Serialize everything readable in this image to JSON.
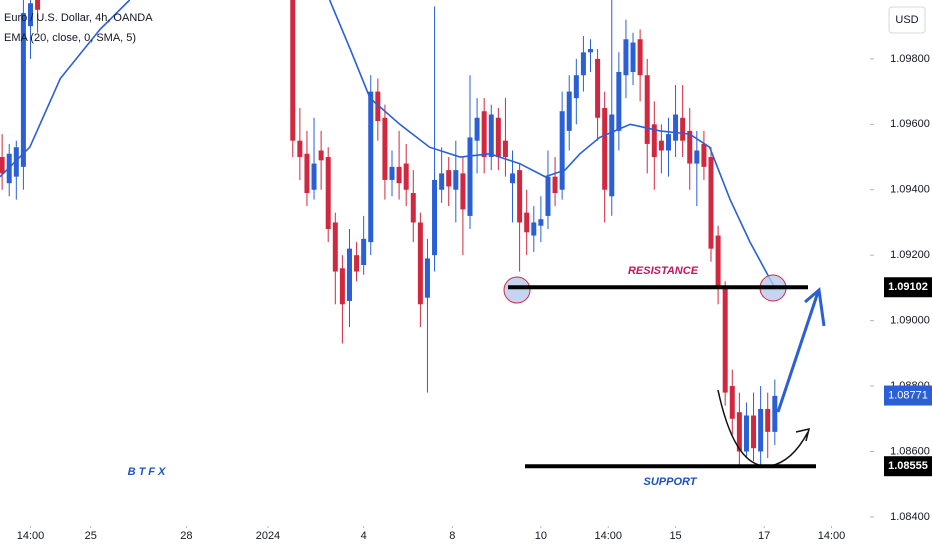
{
  "chart_data": {
    "type": "candlestick",
    "title": "Euro / U.S. Dollar, 4h, OANDA",
    "subtitle": "EMA (20, close, 0, SMA, 5)",
    "currency": "USD",
    "logo": "BTFX",
    "up_color": "#2a5fd6",
    "down_color": "#d1283f",
    "x": [
      0,
      1,
      2,
      3,
      4,
      5,
      41,
      42,
      43,
      44,
      45,
      46,
      47,
      48,
      49,
      50,
      51,
      52,
      53,
      54,
      55,
      56,
      57,
      58,
      59,
      60,
      61,
      62,
      63,
      64,
      65,
      66,
      67,
      68,
      69,
      70,
      71,
      72,
      73,
      74,
      75,
      76,
      77,
      78,
      79,
      80,
      81,
      82,
      83,
      84,
      85,
      86,
      87,
      88,
      89,
      90,
      91,
      92,
      93,
      94,
      95,
      96,
      97,
      98,
      99,
      100,
      101,
      102,
      103,
      104,
      105,
      106,
      107,
      108,
      109
    ],
    "open": [
      1.095,
      1.0942,
      1.0944,
      1.0947,
      1.099,
      1.0998,
      1.0998,
      1.0955,
      1.0951,
      1.094,
      1.0952,
      1.095,
      1.093,
      1.0916,
      1.0906,
      1.092,
      1.0917,
      1.0924,
      1.097,
      1.0962,
      1.0943,
      1.0947,
      1.0948,
      1.0939,
      1.093,
      1.0907,
      1.092,
      1.094,
      1.0946,
      1.094,
      1.0945,
      1.0932,
      1.0955,
      1.0964,
      1.095,
      1.0962,
      1.0955,
      1.0942,
      1.0946,
      1.0933,
      1.0926,
      1.0929,
      1.0932,
      1.0944,
      1.094,
      1.0958,
      1.0968,
      1.0975,
      1.0982,
      1.098,
      1.0965,
      1.0938,
      1.0958,
      1.0975,
      1.0976,
      1.0986,
      1.0975,
      1.096,
      1.0955,
      1.0952,
      1.0955,
      1.0962,
      1.0958,
      1.0948,
      1.0954,
      1.095,
      1.0926,
      1.091,
      1.088,
      1.0872,
      1.086,
      1.0871,
      1.086,
      1.0873,
      1.0866
    ],
    "high": [
      1.0957,
      1.0954,
      1.0955,
      1.0998,
      1.0998,
      1.0998,
      1.0998,
      1.0965,
      1.0958,
      1.0962,
      1.0958,
      1.0953,
      1.0933,
      1.092,
      1.0928,
      1.0924,
      1.0932,
      1.0975,
      1.0974,
      1.0966,
      1.0952,
      1.0958,
      1.0954,
      1.0946,
      1.0933,
      1.0925,
      1.0996,
      1.0953,
      1.095,
      1.0955,
      1.095,
      1.0975,
      1.0968,
      1.0968,
      1.0966,
      1.0965,
      1.0968,
      1.0952,
      1.0948,
      1.094,
      1.0935,
      1.0938,
      1.0952,
      1.095,
      1.097,
      1.0975,
      1.098,
      1.0987,
      1.0986,
      1.0983,
      1.097,
      1.0998,
      1.0982,
      1.0992,
      1.0988,
      1.0989,
      1.098,
      1.0967,
      1.096,
      1.0962,
      1.0972,
      1.0972,
      1.0965,
      1.0958,
      1.0958,
      1.0953,
      1.0929,
      1.0912,
      1.0885,
      1.0878,
      1.0875,
      1.0878,
      1.088,
      1.0878,
      1.0882
    ],
    "low": [
      1.094,
      1.0938,
      1.0937,
      1.094,
      1.098,
      1.0988,
      1.095,
      1.0943,
      1.0935,
      1.0937,
      1.094,
      1.0924,
      1.0905,
      1.0893,
      1.0898,
      1.0912,
      1.0914,
      1.092,
      1.0955,
      1.0937,
      1.0938,
      1.0937,
      1.0935,
      1.0924,
      1.0898,
      1.0878,
      1.0915,
      1.0936,
      1.0935,
      1.093,
      1.092,
      1.0928,
      1.0945,
      1.0945,
      1.0946,
      1.0946,
      1.0944,
      1.093,
      1.0915,
      1.092,
      1.0921,
      1.0924,
      1.0928,
      1.0935,
      1.0937,
      1.0952,
      1.096,
      1.097,
      1.0976,
      1.0955,
      1.093,
      1.0932,
      1.0952,
      1.0968,
      1.0972,
      1.0967,
      1.0945,
      1.094,
      1.0945,
      1.0944,
      1.095,
      1.095,
      1.094,
      1.0935,
      1.0943,
      1.0918,
      1.0905,
      1.0874,
      1.0865,
      1.0855,
      1.0858,
      1.0857,
      1.0856,
      1.0858,
      1.0862
    ],
    "close": [
      1.0945,
      1.0951,
      1.0953,
      1.0994,
      1.0997,
      1.0995,
      1.0955,
      1.095,
      1.0939,
      1.0948,
      1.0949,
      1.0928,
      1.0915,
      1.0905,
      1.0922,
      1.0915,
      1.0925,
      1.097,
      1.0961,
      1.0943,
      1.0947,
      1.0942,
      1.094,
      1.093,
      1.0905,
      1.0919,
      1.0943,
      1.0945,
      1.0941,
      1.0946,
      1.0934,
      1.0956,
      1.0962,
      1.095,
      1.0963,
      1.095,
      1.095,
      1.0945,
      1.093,
      1.0927,
      1.093,
      1.0931,
      1.0944,
      1.0939,
      1.0964,
      1.097,
      1.0975,
      1.0982,
      1.0983,
      1.0962,
      1.094,
      1.0963,
      1.0976,
      1.0986,
      1.0985,
      1.0975,
      1.0954,
      1.095,
      1.0952,
      1.0957,
      1.0963,
      1.0955,
      1.0948,
      1.0952,
      1.0947,
      1.0922,
      1.091,
      1.0878,
      1.087,
      1.086,
      1.0871,
      1.0861,
      1.0873,
      1.0866,
      1.0877
    ],
    "ema": {
      "color": "#2a5fd6",
      "x": [
        -0.3,
        3.9,
        8.2,
        13.8,
        18.0,
        30,
        46.2,
        49.1,
        51.9,
        56.1,
        60.3,
        64.6,
        68.8,
        73.0,
        76.6,
        79.4,
        81.5,
        84.3,
        88.6,
        92.8,
        97.0,
        99.8,
        102.7,
        105.5,
        109.0
      ],
      "values": [
        1.0944,
        1.0953,
        1.0974,
        1.0989,
        1.0998,
        null,
        1.0998,
        1.0983,
        1.0968,
        1.096,
        1.0953,
        1.095,
        1.0951,
        1.0948,
        1.0944,
        1.0946,
        1.0951,
        1.0956,
        1.096,
        1.0958,
        1.0957,
        1.0953,
        1.0937,
        1.0924,
        1.091
      ]
    },
    "xlim": [
      -0.3,
      121.3
    ],
    "ylim": [
      1.0836,
      1.0998
    ],
    "xticks": [
      {
        "value": 4,
        "label": "14:00"
      },
      {
        "value": 12.5,
        "label": "25"
      },
      {
        "value": 26,
        "label": "28"
      },
      {
        "value": 37.5,
        "label": "2024"
      },
      {
        "value": 51,
        "label": "4"
      },
      {
        "value": 63.5,
        "label": "8"
      },
      {
        "value": 76,
        "label": "10"
      },
      {
        "value": 85.5,
        "label": "14:00"
      },
      {
        "value": 95,
        "label": "15"
      },
      {
        "value": 107.5,
        "label": "17"
      },
      {
        "value": 117,
        "label": "14:00"
      }
    ],
    "yticks": [
      {
        "value": 1.084,
        "label": "1.08400"
      },
      {
        "value": 1.086,
        "label": "1.08600"
      },
      {
        "value": 1.088,
        "label": "1.08800"
      },
      {
        "value": 1.09,
        "label": "1.09000"
      },
      {
        "value": 1.092,
        "label": "1.09200"
      },
      {
        "value": 1.094,
        "label": "1.09400"
      },
      {
        "value": 1.096,
        "label": "1.09600"
      },
      {
        "value": 1.098,
        "label": "1.09800"
      }
    ],
    "levels": [
      {
        "name": "RESISTANCE",
        "value": 1.09102,
        "color": "#c2185b"
      },
      {
        "name": "SUPPORT",
        "value": 1.08555,
        "color": "#1a4fc4"
      }
    ],
    "last_price": 1.08771
  }
}
